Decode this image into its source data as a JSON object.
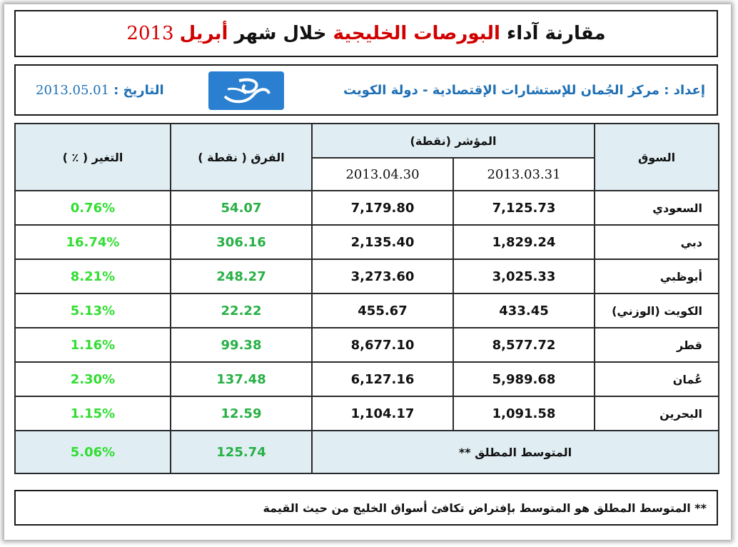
{
  "title": {
    "part1": "مقارنة آداء",
    "highlight": "البورصات الخليجية",
    "part2": "خلال شهر",
    "month": "أبريل",
    "year": "2013"
  },
  "info": {
    "prepared_by": "إعداد : مركز الجُمان للإستشارات الإقتصادية - دولة الكويت",
    "date_label": "التاريخ :",
    "date_value": "2013.05.01",
    "logo_icon": "jumaan-logo-icon"
  },
  "table": {
    "col_market": "السوق",
    "col_index": "المؤشر (نقطة)",
    "col_date1": "2013.03.31",
    "col_date2": "2013.04.30",
    "col_diff": "الفرق ( نقطة )",
    "col_change": "التغير ( ٪ )",
    "rows": [
      {
        "market": "السعودي",
        "mar": "7,125.73",
        "apr": "7,179.80",
        "diff": "54.07",
        "change": "0.76%"
      },
      {
        "market": "دبي",
        "mar": "1,829.24",
        "apr": "2,135.40",
        "diff": "306.16",
        "change": "16.74%"
      },
      {
        "market": "أبوظبي",
        "mar": "3,025.33",
        "apr": "3,273.60",
        "diff": "248.27",
        "change": "8.21%"
      },
      {
        "market": "الكويت (الوزني)",
        "mar": "433.45",
        "apr": "455.67",
        "diff": "22.22",
        "change": "5.13%"
      },
      {
        "market": "قطر",
        "mar": "8,577.72",
        "apr": "8,677.10",
        "diff": "99.38",
        "change": "1.16%"
      },
      {
        "market": "عُمان",
        "mar": "5,989.68",
        "apr": "6,127.16",
        "diff": "137.48",
        "change": "2.30%"
      },
      {
        "market": "البحرين",
        "mar": "1,091.58",
        "apr": "1,104.17",
        "diff": "12.59",
        "change": "1.15%"
      }
    ],
    "avg_label": "المتوسط المطلق **",
    "avg_diff": "125.74",
    "avg_change": "5.06%"
  },
  "note": "** المتوسط المطلق هو المتوسط بإفتراض تكافئ أسواق الخليج من حيث القيمة",
  "colors": {
    "title_red": "#d10000",
    "blue": "#1e6fb4",
    "header_bg": "#e0eef4",
    "green": "#28b046",
    "pct_green": "#33dd33"
  }
}
